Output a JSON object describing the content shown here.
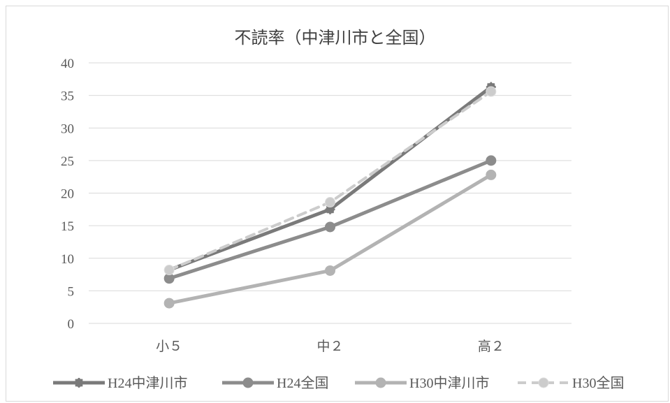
{
  "chart_data": {
    "type": "line",
    "title": "不読率（中津川市と全国）",
    "categories": [
      "小５",
      "中２",
      "高２"
    ],
    "ylim": [
      0,
      40
    ],
    "yticks": [
      0,
      5,
      10,
      15,
      20,
      25,
      30,
      35,
      40
    ],
    "grid": true,
    "legend_position": "bottom",
    "series": [
      {
        "name": "H24中津川市",
        "values": [
          8.2,
          17.5,
          36.3
        ],
        "color": "#7a7a7a",
        "dashed": false,
        "marker": "asterisk"
      },
      {
        "name": "H24全国",
        "values": [
          6.9,
          14.8,
          25.0
        ],
        "color": "#8c8c8c",
        "dashed": false,
        "marker": "circle"
      },
      {
        "name": "H30中津川市",
        "values": [
          3.1,
          8.1,
          22.8
        ],
        "color": "#b3b3b3",
        "dashed": false,
        "marker": "circle"
      },
      {
        "name": "H30全国",
        "values": [
          8.2,
          18.6,
          35.6
        ],
        "color": "#cccccc",
        "dashed": true,
        "marker": "circle"
      }
    ]
  }
}
